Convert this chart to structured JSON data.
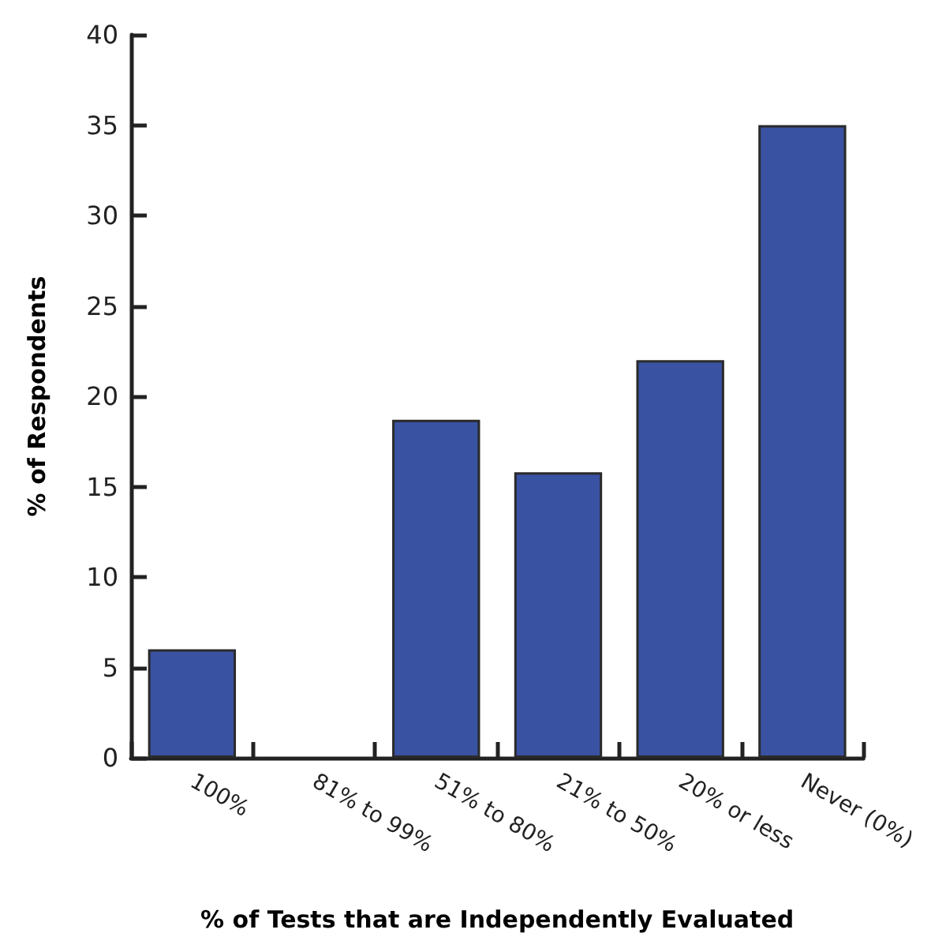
{
  "chart_data": {
    "type": "bar",
    "xlabel": "% of Tests that are Independently Evaluated",
    "ylabel": "% of Respondents",
    "categories": [
      "100%",
      "81% to 99%",
      "51% to 80%",
      "21% to 50%",
      "20% or less",
      "Never (0%)"
    ],
    "values": [
      6.0,
      0,
      18.7,
      15.8,
      22.0,
      35.0
    ],
    "color": "#3a52a2",
    "ylim": [
      0,
      40
    ],
    "yticks": [
      0,
      5,
      10,
      15,
      20,
      25,
      30,
      35,
      40
    ],
    "grid": false
  }
}
